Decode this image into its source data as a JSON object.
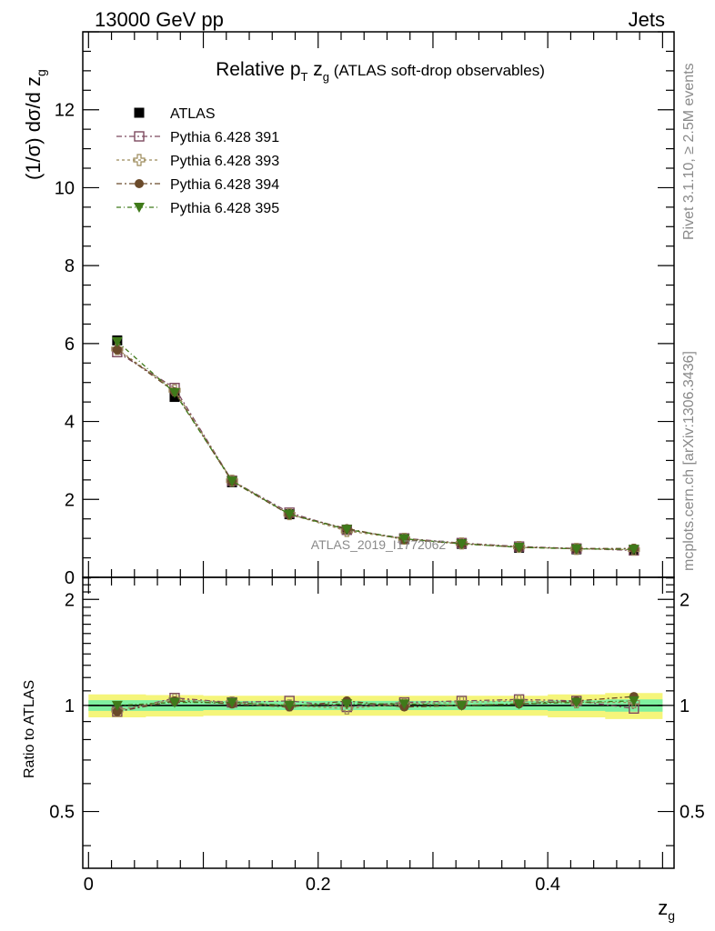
{
  "header": {
    "left": "13000 GeV pp",
    "right": "Jets"
  },
  "side_labels": {
    "rivet": "Rivet 3.1.10, ≥ 2.5M events",
    "mcplots": "mcplots.cern.ch [arXiv:1306.3436]"
  },
  "colors": {
    "atlas": "#000000",
    "p391": "#7d4a5f",
    "p393": "#9c8a5a",
    "p394": "#6a4a2a",
    "p395": "#3f7a1a",
    "band_inner": "#7ff0a0",
    "band_outer": "#f5f57a"
  },
  "chart_data": [
    {
      "type": "scatter",
      "title_main": "Relative p",
      "title_sub": "T",
      "title_mid": " z",
      "title_sub2": "g",
      "title_tail": " (ATLAS soft-drop observables)",
      "ylabel": "(1/σ) dσ/d z",
      "ylabel_sub": "g",
      "watermark": "ATLAS_2019_I1772062",
      "xlim": [
        -0.005,
        0.51
      ],
      "ylim": [
        0,
        14
      ],
      "yticks": [
        0,
        2,
        4,
        6,
        8,
        10,
        12
      ],
      "x": [
        0.025,
        0.075,
        0.125,
        0.175,
        0.225,
        0.275,
        0.325,
        0.375,
        0.425,
        0.475
      ],
      "legend": {
        "position": "top-left"
      },
      "series": [
        {
          "name": "ATLAS",
          "marker": "square-filled",
          "values": [
            6.08,
            4.63,
            2.44,
            1.62,
            1.22,
            0.98,
            0.86,
            0.76,
            0.72,
            0.7
          ]
        },
        {
          "name": "Pythia 6.428 391",
          "marker": "square-open",
          "values": [
            5.78,
            4.86,
            2.48,
            1.66,
            1.22,
            1.0,
            0.88,
            0.79,
            0.74,
            0.69
          ]
        },
        {
          "name": "Pythia 6.428 393",
          "marker": "cross-open",
          "values": [
            5.86,
            4.8,
            2.48,
            1.62,
            1.19,
            0.99,
            0.87,
            0.78,
            0.73,
            0.71
          ]
        },
        {
          "name": "Pythia 6.428 394",
          "marker": "circle-filled",
          "values": [
            5.84,
            4.76,
            2.46,
            1.61,
            1.25,
            0.97,
            0.86,
            0.77,
            0.74,
            0.74
          ]
        },
        {
          "name": "Pythia 6.428 395",
          "marker": "triangle-down-filled",
          "values": [
            6.05,
            4.74,
            2.47,
            1.62,
            1.23,
            0.99,
            0.86,
            0.77,
            0.73,
            0.72
          ]
        }
      ]
    },
    {
      "type": "scatter",
      "ylabel": "Ratio to ATLAS",
      "xlabel": "z",
      "xlabel_sub": "g",
      "xlim": [
        -0.005,
        0.51
      ],
      "ylim": [
        0.345,
        2.31
      ],
      "xticks": [
        0,
        0.2,
        0.4
      ],
      "xtick_labels": [
        "0",
        "0.2",
        "0.4"
      ],
      "yticks": [
        0.5,
        1,
        2
      ],
      "ytick_labels": [
        "0.5",
        "1",
        "2"
      ],
      "x": [
        0.025,
        0.075,
        0.125,
        0.175,
        0.225,
        0.275,
        0.325,
        0.375,
        0.425,
        0.475
      ],
      "band_inner": [
        0.035,
        0.035,
        0.03,
        0.03,
        0.03,
        0.03,
        0.03,
        0.03,
        0.035,
        0.04
      ],
      "band_outer": [
        0.075,
        0.07,
        0.065,
        0.065,
        0.065,
        0.065,
        0.065,
        0.065,
        0.075,
        0.085
      ],
      "series": [
        {
          "name": "Pythia 6.428 391",
          "values": [
            0.96,
            1.05,
            1.02,
            1.03,
            0.99,
            1.02,
            1.03,
            1.04,
            1.03,
            0.98
          ]
        },
        {
          "name": "Pythia 6.428 393",
          "values": [
            0.97,
            1.04,
            1.02,
            1.0,
            0.98,
            1.01,
            1.02,
            1.03,
            1.02,
            1.02
          ]
        },
        {
          "name": "Pythia 6.428 394",
          "values": [
            0.96,
            1.03,
            1.01,
            0.99,
            1.03,
            0.99,
            1.0,
            1.01,
            1.03,
            1.06
          ]
        },
        {
          "name": "Pythia 6.428 395",
          "values": [
            1.0,
            1.02,
            1.02,
            1.0,
            1.01,
            1.01,
            1.0,
            1.01,
            1.02,
            1.03
          ]
        }
      ]
    }
  ]
}
